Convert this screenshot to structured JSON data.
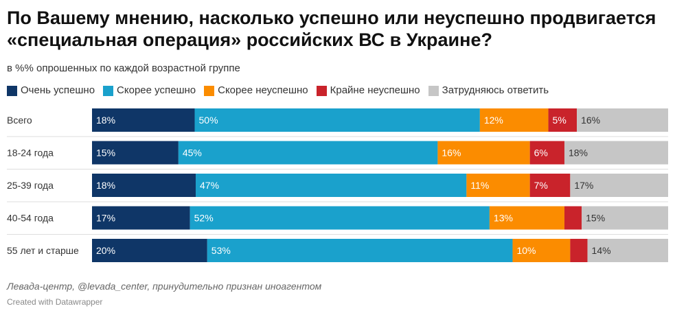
{
  "chart_data": {
    "type": "bar",
    "orientation": "horizontal",
    "stacked": true,
    "normalized": true,
    "title": "По Вашему мнению, насколько успешно или неуспешно продвигается «специальная операция» российских ВС в Украине?",
    "subtitle": "в %% опрошенных по каждой возрастной группе",
    "categories": [
      "Всего",
      "18-24 года",
      "25-39 года",
      "40-54 года",
      "55 лет и старше"
    ],
    "series": [
      {
        "name": "Очень успешно",
        "color": "#0f3667",
        "label_color": "#ffffff",
        "values": [
          18,
          15,
          18,
          17,
          20
        ],
        "labels": [
          "18%",
          "15%",
          "18%",
          "17%",
          "20%"
        ]
      },
      {
        "name": "Скорее успешно",
        "color": "#1aa1cc",
        "label_color": "#ffffff",
        "values": [
          50,
          45,
          47,
          52,
          53
        ],
        "labels": [
          "50%",
          "45%",
          "47%",
          "52%",
          "53%"
        ]
      },
      {
        "name": "Скорее неуспешно",
        "color": "#fb8c00",
        "label_color": "#ffffff",
        "values": [
          12,
          16,
          11,
          13,
          10
        ],
        "labels": [
          "12%",
          "16%",
          "11%",
          "13%",
          "10%"
        ]
      },
      {
        "name": "Крайне неуспешно",
        "color": "#c9232b",
        "label_color": "#ffffff",
        "values": [
          5,
          6,
          7,
          3,
          3
        ],
        "labels": [
          "5%",
          "6%",
          "7%",
          "",
          ""
        ]
      },
      {
        "name": "Затрудняюсь ответить",
        "color": "#c6c6c6",
        "label_color": "#333333",
        "values": [
          16,
          18,
          17,
          15,
          14
        ],
        "labels": [
          "16%",
          "18%",
          "17%",
          "15%",
          "14%"
        ]
      }
    ],
    "legend": "top-left",
    "grid": false,
    "source": "Левада-центр, @levada_center, принудительно признан иноагентом",
    "credit": "Created with Datawrapper"
  }
}
